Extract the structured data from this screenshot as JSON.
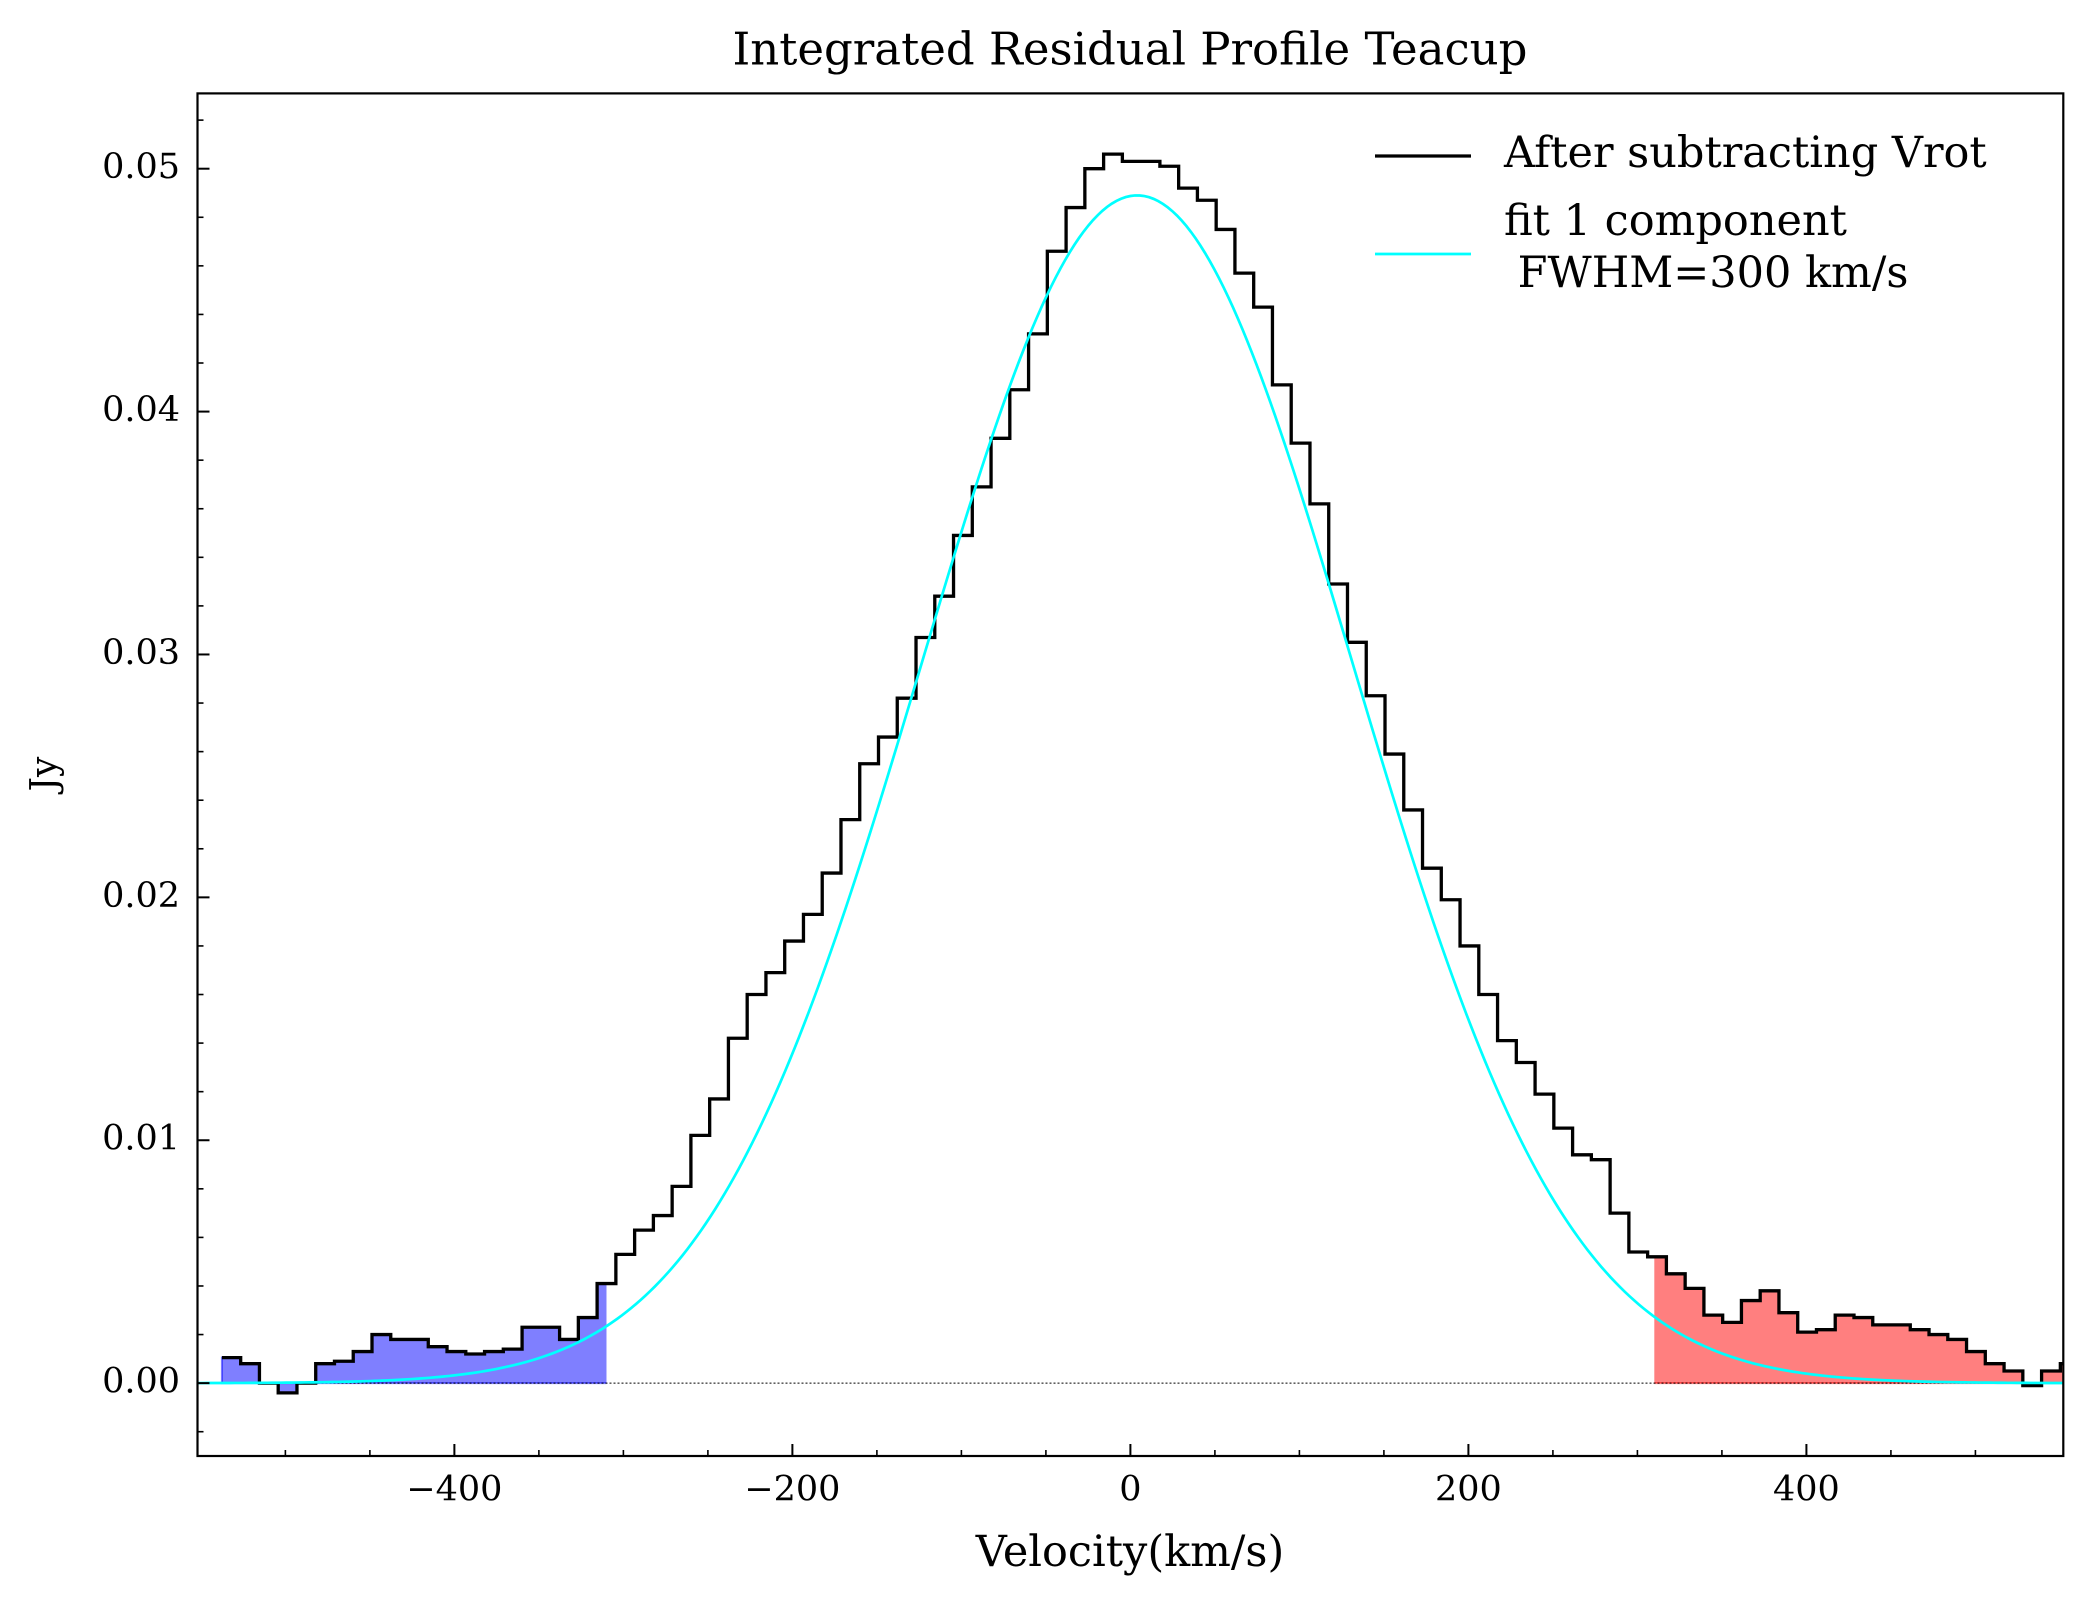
{
  "chart_data": {
    "type": "step",
    "title": "Integrated Residual Profile Teacup",
    "xlabel": "Velocity(km/s)",
    "ylabel": "Jy",
    "xlim": [
      -552,
      552
    ],
    "ylim": [
      -0.003,
      0.0531
    ],
    "xticks": [
      {
        "value": -400,
        "label": "−400"
      },
      {
        "value": -200,
        "label": "−200"
      },
      0,
      200,
      400
    ],
    "yticks": [
      {
        "value": 0,
        "label": "0.00"
      },
      {
        "value": 0.01,
        "label": "0.01"
      },
      {
        "value": 0.02,
        "label": "0.02"
      },
      {
        "value": 0.03,
        "label": "0.03"
      },
      {
        "value": 0.04,
        "label": "0.04"
      },
      {
        "value": 0.05,
        "label": "0.05"
      }
    ],
    "xminorticks": [
      -500,
      -450,
      -350,
      -300,
      -250,
      -150,
      -100,
      -50,
      50,
      100,
      150,
      250,
      300,
      350,
      450,
      500
    ],
    "yminorticks": [
      -0.002,
      0.002,
      0.004,
      0.006,
      0.008,
      0.012,
      0.014,
      0.016,
      0.018,
      0.022,
      0.024,
      0.026,
      0.028,
      0.032,
      0.034,
      0.036,
      0.038,
      0.042,
      0.044,
      0.046,
      0.048,
      0.052
    ],
    "tick_direction": "in",
    "zero_line": true,
    "legend": "upper right",
    "series": [
      {
        "name": "After subtracting Vrot",
        "color": "#000000",
        "x": [
          -532,
          -520.9,
          -509.8,
          -498.7,
          -487.6,
          -476.5,
          -465.4,
          -454.3,
          -443.2,
          -432.1,
          -421,
          -409.9,
          -398.8,
          -387.7,
          -376.6,
          -365.5,
          -354.4,
          -343.3,
          -332.2,
          -321.1,
          -310,
          -298.9,
          -287.8,
          -276.7,
          -265.6,
          -254.5,
          -243.4,
          -232.3,
          -221.2,
          -210.1,
          -199,
          -187.9,
          -176.8,
          -165.7,
          -154.6,
          -143.5,
          -132.4,
          -121.3,
          -110.2,
          -99.1,
          -88,
          -76.9,
          -65.8,
          -54.7,
          -43.6,
          -32.5,
          -21.4,
          -10.3,
          0.8,
          11.9,
          23,
          34.1,
          45.2,
          56.3,
          67.4,
          78.5,
          89.6,
          100.7,
          111.8,
          122.9,
          134,
          145.1,
          156.2,
          167.3,
          178.4,
          189.5,
          200.6,
          211.7,
          222.8,
          233.9,
          245,
          256.1,
          267.2,
          278.3,
          289.4,
          300.5,
          311.6,
          322.7,
          333.8,
          344.9,
          356,
          367.1,
          378.2,
          389.3,
          400.4,
          411.5,
          422.6,
          433.7,
          444.8,
          455.9,
          467,
          478.1,
          489.2,
          500.3,
          511.4,
          522.5,
          533.6,
          544.7,
          555.8
        ],
        "values": [
          0.00105,
          0.0008,
          0.0,
          -0.0004,
          0.0,
          0.0008,
          0.0009,
          0.0013,
          0.002,
          0.0018,
          0.0018,
          0.0015,
          0.0013,
          0.0012,
          0.0013,
          0.0014,
          0.0023,
          0.0023,
          0.0018,
          0.0027,
          0.0041,
          0.0053,
          0.0063,
          0.0069,
          0.0081,
          0.0102,
          0.0117,
          0.0142,
          0.016,
          0.0169,
          0.0182,
          0.0193,
          0.021,
          0.0232,
          0.0255,
          0.0266,
          0.0282,
          0.0307,
          0.0324,
          0.0349,
          0.0369,
          0.0389,
          0.0409,
          0.0432,
          0.0466,
          0.0484,
          0.05,
          0.0506,
          0.0503,
          0.0503,
          0.0501,
          0.0492,
          0.0487,
          0.0475,
          0.0457,
          0.0443,
          0.0411,
          0.0387,
          0.0362,
          0.0329,
          0.0305,
          0.0283,
          0.0259,
          0.0236,
          0.0212,
          0.0199,
          0.018,
          0.016,
          0.0141,
          0.0132,
          0.0119,
          0.0105,
          0.0094,
          0.0092,
          0.007,
          0.0054,
          0.0052,
          0.0045,
          0.0039,
          0.0028,
          0.0025,
          0.0034,
          0.0038,
          0.0029,
          0.0021,
          0.0022,
          0.0028,
          0.0027,
          0.0024,
          0.0024,
          0.0022,
          0.002,
          0.0018,
          0.0013,
          0.0008,
          0.0005,
          -0.0001,
          0.0005,
          0.0008
        ]
      }
    ],
    "fit": {
      "name": "fit 1 component\n FWHM=300 km/s",
      "color": "#00ffff",
      "amplitude": 0.0489,
      "center": 4,
      "fwhm": 300
    },
    "fills": [
      {
        "color": "#0000ff",
        "alpha": 0.5,
        "xmax": -310
      },
      {
        "color": "#ff0000",
        "alpha": 0.5,
        "xmin": 310
      }
    ]
  }
}
